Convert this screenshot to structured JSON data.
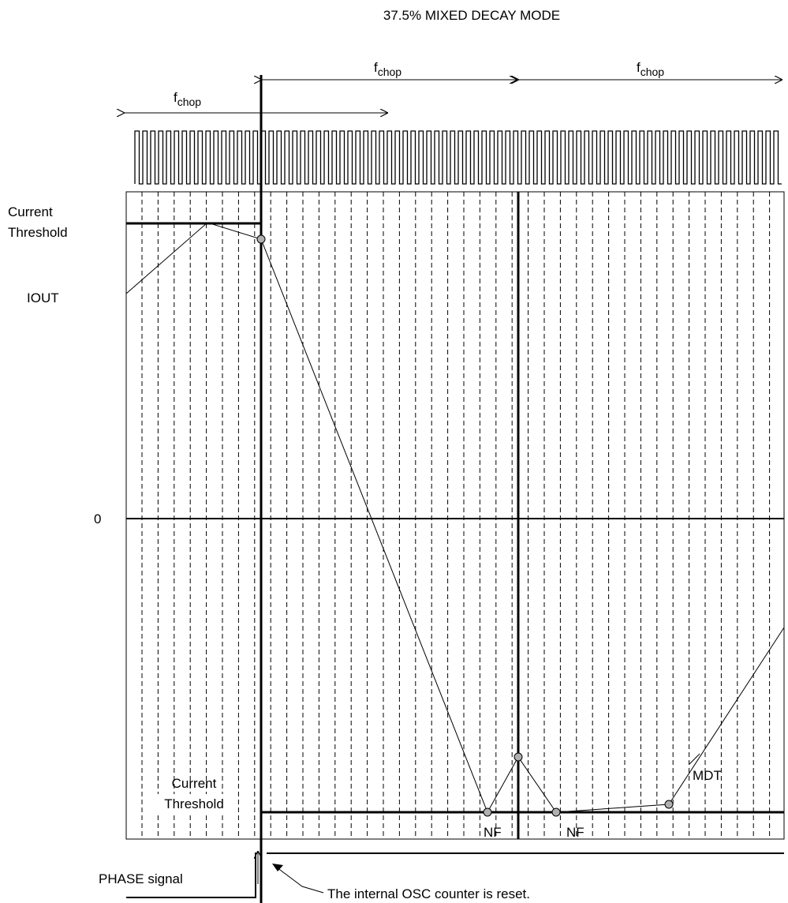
{
  "title": "37.5%  MIXED DECAY MODE",
  "fchop_label": {
    "main": "f",
    "sub": "chop"
  },
  "y_labels": {
    "current_threshold_top_line1": "Current",
    "current_threshold_top_line2": "Threshold",
    "iout": "IOUT",
    "zero": "0"
  },
  "current_threshold_bottom": {
    "line1": "Current",
    "line2": "Threshold"
  },
  "point_labels": {
    "nf1": "NF",
    "nf2": "NF",
    "mdt": "MDT"
  },
  "phase_signal": "PHASE signal",
  "osc_reset_note": "The internal OSC counter is reset.",
  "colors": {
    "line": "#000000",
    "marker_fill": "#b0b0b0"
  }
}
